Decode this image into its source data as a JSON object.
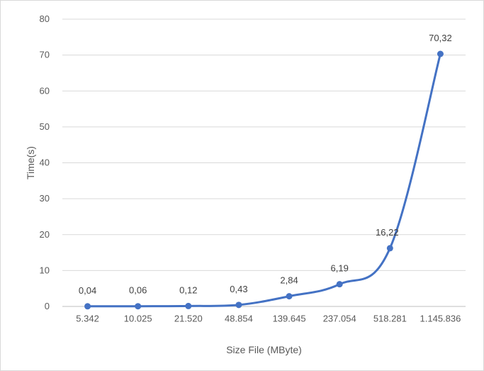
{
  "chart_data": {
    "type": "line",
    "xlabel": "Size File (MByte)",
    "ylabel": "Time(s)",
    "ylim": [
      0,
      80
    ],
    "yticks": [
      "0",
      "10",
      "20",
      "30",
      "40",
      "50",
      "60",
      "70",
      "80"
    ],
    "grid": true,
    "color": "#4472c4",
    "categories": [
      "5.342",
      "10.025",
      "21.520",
      "48.854",
      "139.645",
      "237.054",
      "518.281",
      "1.145.836"
    ],
    "values": [
      0.04,
      0.06,
      0.12,
      0.43,
      2.84,
      6.19,
      16.22,
      70.32
    ],
    "data_labels": [
      "0,04",
      "0,06",
      "0,12",
      "0,43",
      "2,84",
      "6,19",
      "16,22",
      "70,32"
    ]
  }
}
